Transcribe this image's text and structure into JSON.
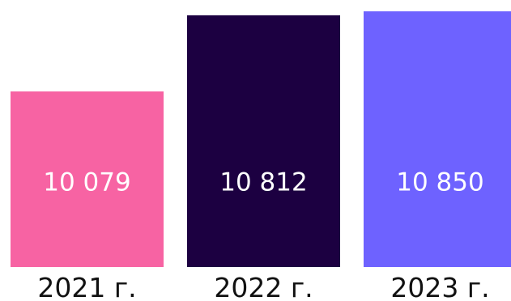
{
  "chart_data": {
    "type": "bar",
    "categories": [
      "2021 г.",
      "2022 г.",
      "2023 г."
    ],
    "values": [
      10079,
      10812,
      10850
    ],
    "value_labels": [
      "10 079",
      "10 812",
      "10 850"
    ],
    "colors": [
      "#F763A3",
      "#1C0041",
      "#6E62FF"
    ],
    "title": "",
    "xlabel": "",
    "ylabel": "",
    "grid": false,
    "legend": "none"
  }
}
